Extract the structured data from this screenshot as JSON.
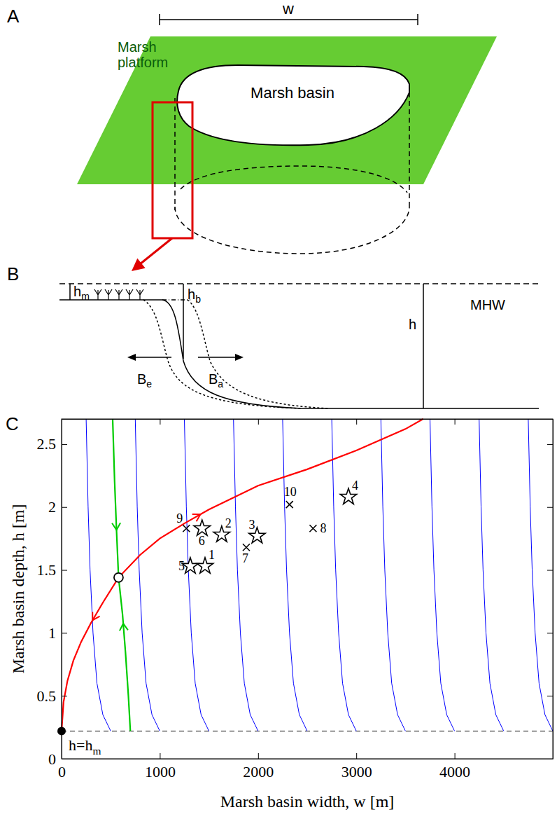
{
  "panel_a": {
    "label": "A",
    "width_label": "w",
    "platform_label": [
      "Marsh",
      "platform"
    ],
    "basin_label": "Marsh basin"
  },
  "panel_b": {
    "label": "B",
    "hm": [
      "h",
      "m"
    ],
    "hb": [
      "h",
      "b"
    ],
    "h": "h",
    "mhw": "MHW",
    "be": [
      "B",
      "e"
    ],
    "ba": [
      "B",
      "a"
    ]
  },
  "chart_data": {
    "type": "line",
    "panel_label": "C",
    "xlabel": "Marsh basin width, w [m]",
    "ylabel": "Marsh basin depth, h [m]",
    "xlim": [
      0,
      5000
    ],
    "ylim": [
      0,
      2.7
    ],
    "xticks": [
      0,
      1000,
      2000,
      3000,
      4000
    ],
    "yticks": [
      0,
      0.5,
      1,
      1.5,
      2,
      2.5
    ],
    "hline": {
      "value": 0.22,
      "line_style": "dashed",
      "label": [
        "h=h",
        "m"
      ]
    },
    "series": [
      {
        "type": "line",
        "color": "#0000ff",
        "line_style": "solid",
        "x": [
          500,
          420,
          360,
          320,
          290,
          270,
          250
        ],
        "values": [
          0.22,
          0.35,
          0.6,
          1.0,
          1.5,
          2.0,
          2.7
        ]
      },
      {
        "type": "line",
        "color": "#0000ff",
        "line_style": "solid",
        "x": [
          1000,
          920,
          860,
          820,
          790,
          770,
          750
        ],
        "values": [
          0.22,
          0.35,
          0.6,
          1.0,
          1.5,
          2.0,
          2.7
        ]
      },
      {
        "type": "line",
        "color": "#0000ff",
        "line_style": "solid",
        "x": [
          1500,
          1420,
          1360,
          1320,
          1290,
          1270,
          1250
        ],
        "values": [
          0.22,
          0.35,
          0.6,
          1.0,
          1.5,
          2.0,
          2.7
        ]
      },
      {
        "type": "line",
        "color": "#0000ff",
        "line_style": "solid",
        "x": [
          2000,
          1920,
          1860,
          1820,
          1790,
          1770,
          1750
        ],
        "values": [
          0.22,
          0.35,
          0.6,
          1.0,
          1.5,
          2.0,
          2.7
        ]
      },
      {
        "type": "line",
        "color": "#0000ff",
        "line_style": "solid",
        "x": [
          2500,
          2420,
          2360,
          2320,
          2290,
          2270,
          2250
        ],
        "values": [
          0.22,
          0.35,
          0.6,
          1.0,
          1.5,
          2.0,
          2.7
        ]
      },
      {
        "type": "line",
        "color": "#0000ff",
        "line_style": "solid",
        "x": [
          3000,
          2920,
          2860,
          2820,
          2790,
          2770,
          2750
        ],
        "values": [
          0.22,
          0.35,
          0.6,
          1.0,
          1.5,
          2.0,
          2.7
        ]
      },
      {
        "type": "line",
        "color": "#0000ff",
        "line_style": "solid",
        "x": [
          3500,
          3420,
          3360,
          3320,
          3290,
          3270,
          3250
        ],
        "values": [
          0.22,
          0.35,
          0.6,
          1.0,
          1.5,
          2.0,
          2.7
        ]
      },
      {
        "type": "line",
        "color": "#0000ff",
        "line_style": "solid",
        "x": [
          4000,
          3920,
          3860,
          3820,
          3790,
          3770,
          3750
        ],
        "values": [
          0.22,
          0.35,
          0.6,
          1.0,
          1.5,
          2.0,
          2.7
        ]
      },
      {
        "type": "line",
        "color": "#0000ff",
        "line_style": "solid",
        "x": [
          4500,
          4420,
          4360,
          4320,
          4290,
          4270,
          4250
        ],
        "values": [
          0.22,
          0.35,
          0.6,
          1.0,
          1.5,
          2.0,
          2.7
        ]
      },
      {
        "type": "line",
        "color": "#0000ff",
        "line_style": "solid",
        "x": [
          5000,
          4920,
          4860,
          4820,
          4790,
          4770,
          4750
        ],
        "values": [
          0.22,
          0.35,
          0.6,
          1.0,
          1.5,
          2.0,
          2.7
        ]
      },
      {
        "type": "unstable",
        "color": "#ff0000",
        "line_style": "solid",
        "x": [
          0,
          20,
          60,
          120,
          200,
          300,
          420,
          580,
          800,
          1000,
          1250,
          1500,
          2000,
          2500,
          3000,
          3500,
          3680
        ],
        "values": [
          0.22,
          0.45,
          0.62,
          0.78,
          0.93,
          1.08,
          1.24,
          1.44,
          1.62,
          1.75,
          1.87,
          1.98,
          2.17,
          2.3,
          2.45,
          2.62,
          2.7
        ]
      },
      {
        "type": "stable",
        "color": "#00cc00",
        "line_style": "solid",
        "x": [
          700,
          680,
          650,
          620,
          580,
          560,
          540,
          520
        ],
        "values": [
          0.22,
          0.5,
          0.85,
          1.15,
          1.44,
          1.8,
          2.2,
          2.7
        ]
      },
      {
        "type": "scatter",
        "color": "#000000",
        "marker": "dot",
        "x": [
          0
        ],
        "values": [
          0.22
        ]
      },
      {
        "type": "scatter",
        "color": "#000000",
        "marker": "circle",
        "x": [
          580
        ],
        "values": [
          1.44
        ]
      },
      {
        "type": "scatter",
        "color": "#000000",
        "marker": "star",
        "x": [
          1460,
          1630,
          1990,
          2920,
          1310,
          1430
        ],
        "values": [
          1.53,
          1.78,
          1.77,
          2.08,
          1.53,
          1.83
        ],
        "labels": [
          "1",
          "2",
          "3",
          "4",
          "5",
          "6"
        ]
      },
      {
        "type": "scatter",
        "color": "#000000",
        "marker": "x",
        "x": [
          1880,
          2560,
          1270,
          2320
        ],
        "values": [
          1.68,
          1.83,
          1.83,
          2.02
        ],
        "labels": [
          "7",
          "8",
          "9",
          "10"
        ]
      }
    ]
  }
}
